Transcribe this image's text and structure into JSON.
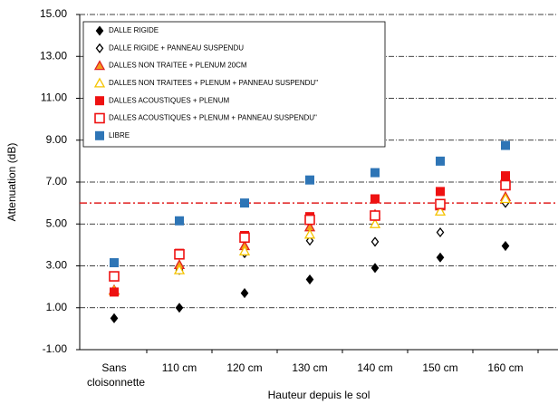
{
  "chart_data": {
    "type": "scatter",
    "x_label": "Hauteur depuis le sol",
    "y_label": "Attenuation (dB)",
    "categories": [
      "Sans cloisonnette",
      "110 cm",
      "120 cm",
      "130 cm",
      "140 cm",
      "150 cm",
      "160 cm"
    ],
    "ylim": [
      -1,
      15
    ],
    "yticks": [
      {
        "value": -1,
        "label": "-1.00"
      },
      {
        "value": 1,
        "label": "1.00"
      },
      {
        "value": 3,
        "label": "3.00"
      },
      {
        "value": 5,
        "label": "5.00"
      },
      {
        "value": 7,
        "label": "7.00"
      },
      {
        "value": 9,
        "label": "9.00"
      },
      {
        "value": 11,
        "label": "11.00"
      },
      {
        "value": 13,
        "label": "13.00"
      },
      {
        "value": 15,
        "label": "15.00"
      }
    ],
    "grid": true,
    "reference_line": {
      "value": 6,
      "color": "#e02020"
    },
    "legend": "top-left",
    "series": [
      {
        "name": "DALLE RIGIDE",
        "color": "#000000",
        "marker": "diamond",
        "values": [
          0.5,
          1.0,
          1.7,
          2.35,
          2.9,
          3.4,
          3.95
        ]
      },
      {
        "name": "DALLE RIGIDE + PANNEAU SUSPENDU",
        "color": "#000000",
        "marker": "diamond-open",
        "values": [
          1.8,
          2.8,
          3.6,
          4.2,
          4.15,
          4.6,
          6.0
        ]
      },
      {
        "name": "DALLES NON TRAITEE + PLENUM 20CM",
        "color": "#f39a1e",
        "marker": "triangle",
        "values": [
          1.85,
          3.05,
          3.95,
          4.85,
          5.45,
          5.85,
          6.3
        ]
      },
      {
        "name": "DALLES NON TRAITEES + PLENUM + PANNEAU SUSPENDU\"",
        "color": "#f5c400",
        "marker": "triangle-open",
        "values": [
          1.8,
          2.8,
          3.7,
          4.5,
          5.0,
          5.6,
          6.2
        ]
      },
      {
        "name": "DALLES ACOUSTIQUES + PLENUM",
        "color": "#ee1111",
        "marker": "square",
        "values": [
          1.75,
          3.6,
          4.45,
          5.35,
          6.2,
          6.55,
          7.3
        ]
      },
      {
        "name": "DALLES ACOUSTIQUES + PLENUM + PANNEAU SUSPENDU\"",
        "color": "#ee1111",
        "marker": "square-open",
        "values": [
          2.5,
          3.55,
          4.35,
          5.2,
          5.4,
          5.95,
          6.85
        ]
      },
      {
        "name": "LIBRE",
        "color": "#2e75b6",
        "marker": "square",
        "values": [
          3.15,
          5.15,
          6.0,
          7.1,
          7.45,
          8.0,
          8.75
        ]
      }
    ]
  }
}
